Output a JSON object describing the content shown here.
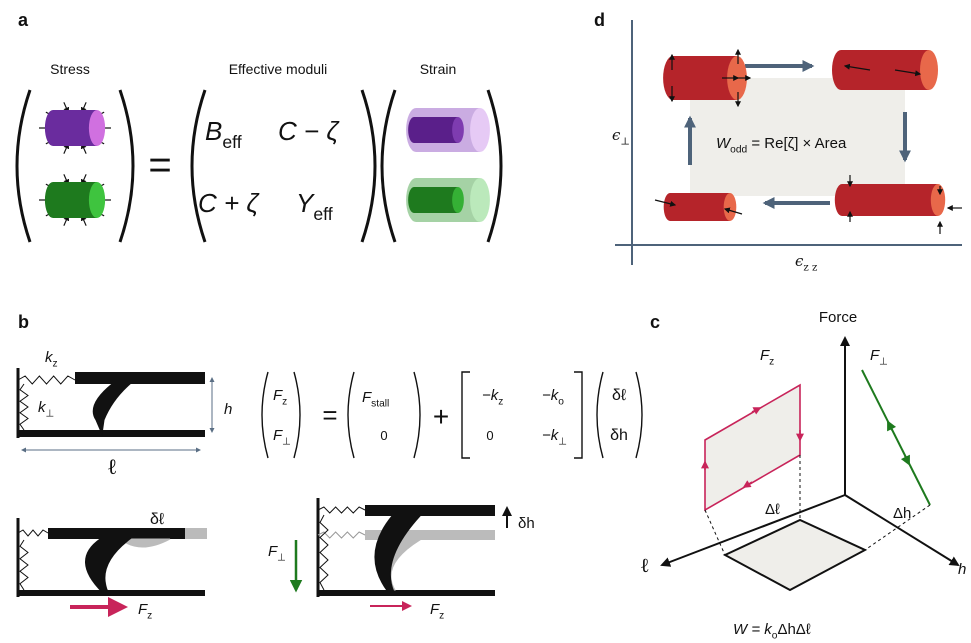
{
  "a": {
    "label": "a",
    "stress": "Stress",
    "moduli": "Effective moduli",
    "strain": "Strain",
    "equals": "=",
    "b_eff": {
      "main": "B",
      "sub": "eff"
    },
    "c_minus_zeta": "C − ζ",
    "c_plus_zeta": "C + ζ",
    "y_eff": {
      "main": "Y",
      "sub": "eff"
    }
  },
  "d": {
    "label": "d",
    "y_axis": {
      "main": "ϵ",
      "sub": "⊥"
    },
    "x_axis": {
      "main": "ϵ",
      "sub": "z z"
    },
    "work": {
      "main": "W",
      "sub": "odd",
      "rest": " = Re[ζ] × Area"
    }
  },
  "b": {
    "label": "b",
    "kz": {
      "main": "k",
      "sub": "z"
    },
    "kperp": {
      "main": "k",
      "sub": "⊥"
    },
    "h": "h",
    "ell": "ℓ",
    "equation": {
      "lhs": [
        {
          "main": "F",
          "sub": "z"
        },
        {
          "main": "F",
          "sub": "⊥"
        }
      ],
      "equals": "=",
      "stall": [
        {
          "main": "F",
          "sub": "stall"
        },
        "0"
      ],
      "plus": "+",
      "matrix": [
        [
          {
            "main": "−k",
            "sub": "z"
          },
          {
            "main": "−k",
            "sub": "o"
          }
        ],
        [
          "0",
          {
            "main": "−k",
            "sub": "⊥"
          }
        ]
      ],
      "vector": [
        "δℓ",
        "δh"
      ]
    },
    "delta_ell": "δℓ",
    "fz_left": {
      "main": "F",
      "sub": "z"
    },
    "fperp": {
      "main": "F",
      "sub": "⊥"
    },
    "delta_h": "δh",
    "fz_right": {
      "main": "F",
      "sub": "z"
    }
  },
  "c": {
    "label": "c",
    "force": "Force",
    "fz": {
      "main": "F",
      "sub": "z"
    },
    "fperp": {
      "main": "F",
      "sub": "⊥"
    },
    "delta_ell": "Δℓ",
    "delta_h": "Δh",
    "ell": "ℓ",
    "h": "h",
    "work": {
      "main": "W = k",
      "sub": "o",
      "rest": "ΔhΔℓ"
    }
  }
}
